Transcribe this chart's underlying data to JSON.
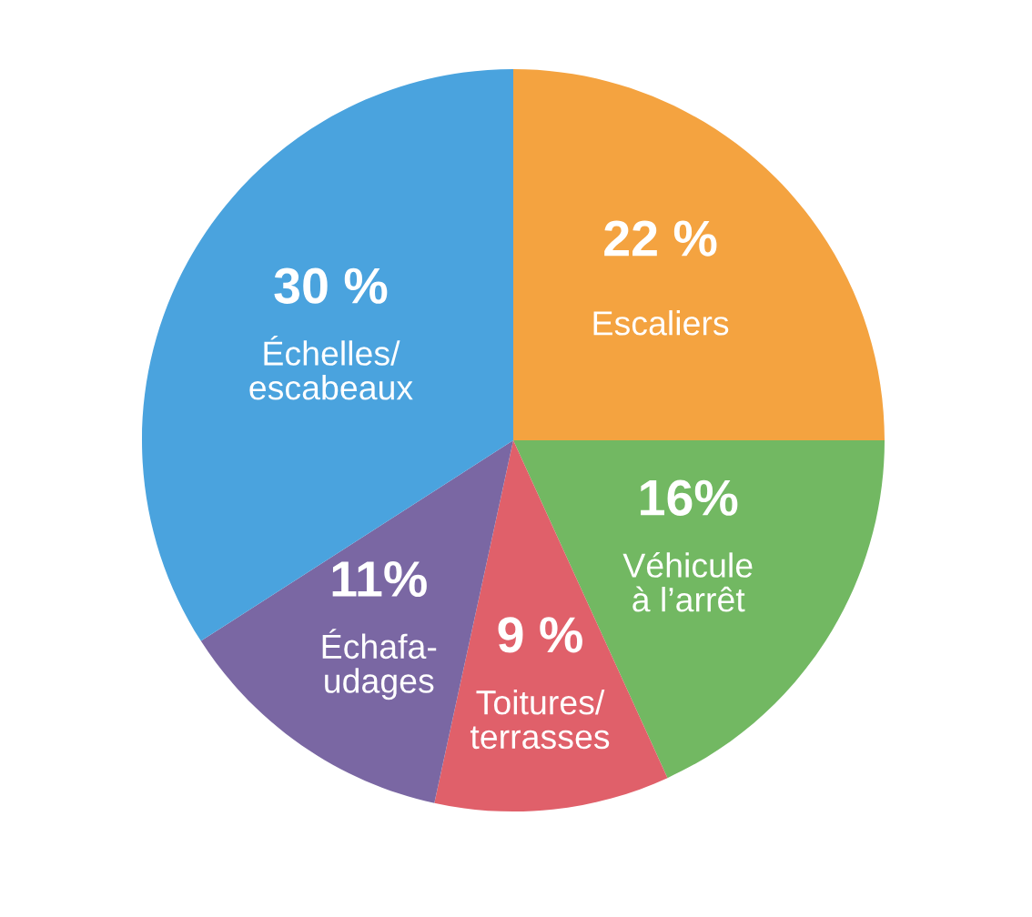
{
  "chart_data": {
    "type": "pie",
    "categories": [
      "Escaliers",
      "Véhicule\nà l’arrêt",
      "Toitures/\nterrasses",
      "Échafa-\nudages",
      "Échelles/\nescabeaux"
    ],
    "values": [
      22,
      16,
      9,
      11,
      30
    ],
    "colors": [
      "#f4a340",
      "#72b862",
      "#e0606a",
      "#7a67a3",
      "#4aa3de"
    ],
    "value_labels": [
      "22 %",
      "16%",
      "9 %",
      "11%",
      "30 %"
    ]
  }
}
